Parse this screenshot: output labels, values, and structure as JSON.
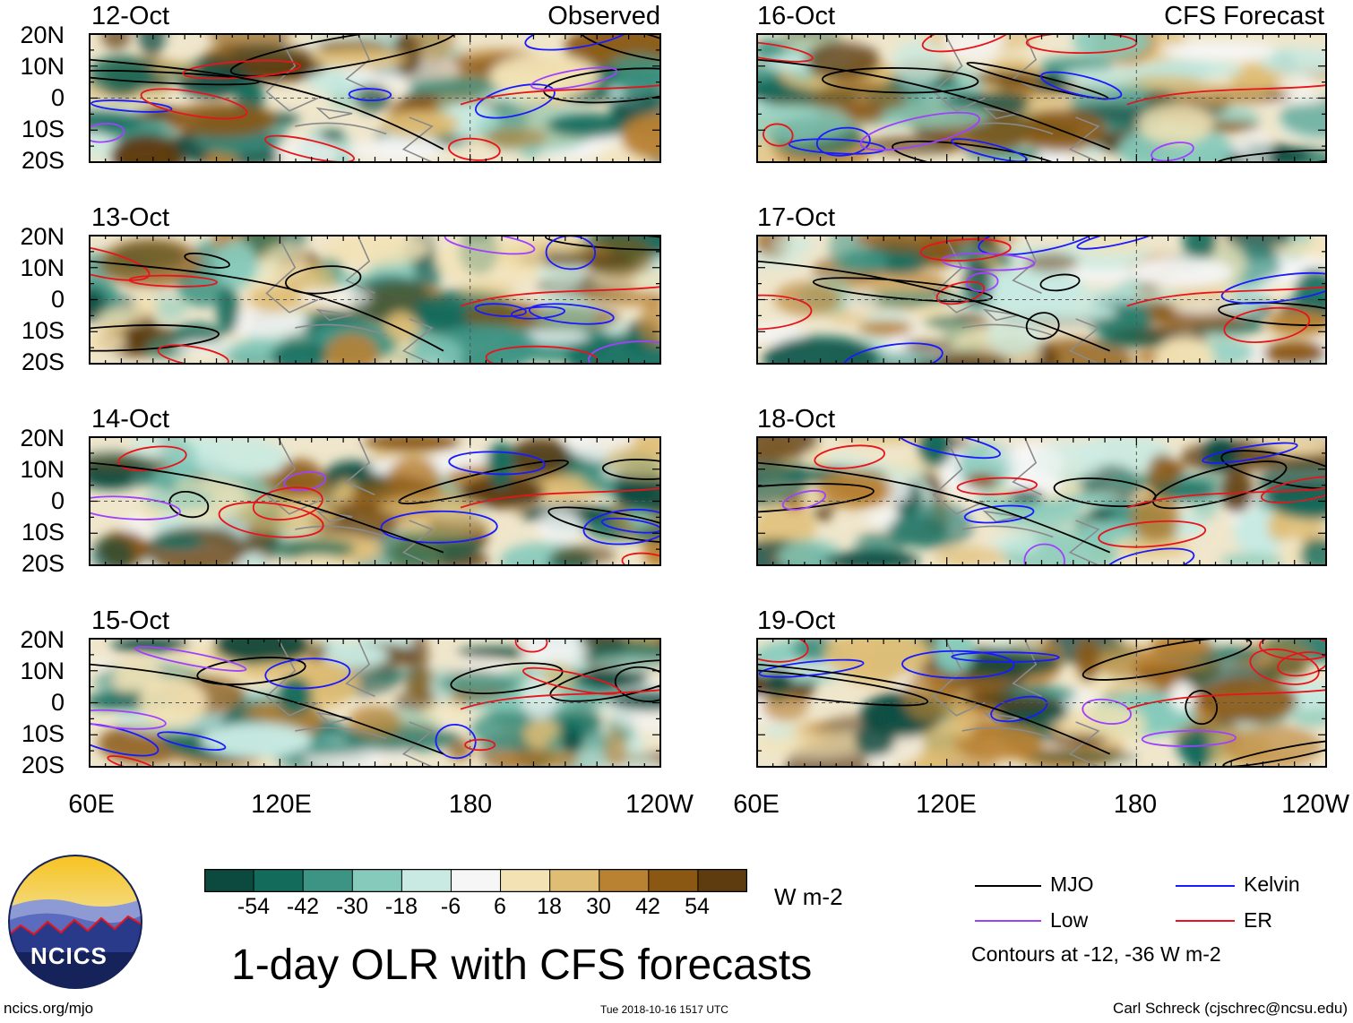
{
  "chart_data": {
    "type": "heatmap",
    "title": "1-day OLR with CFS forecasts",
    "x_ticks": [
      "60E",
      "120E",
      "180",
      "120W"
    ],
    "y_ticks": [
      "20N",
      "10N",
      "0",
      "10S",
      "20S"
    ],
    "xlim_deg_east": [
      60,
      240
    ],
    "ylim_deg": [
      -20,
      20
    ],
    "panels": [
      {
        "date": "12-Oct",
        "column": "left",
        "corner_label": "Observed"
      },
      {
        "date": "13-Oct",
        "column": "left"
      },
      {
        "date": "14-Oct",
        "column": "left"
      },
      {
        "date": "15-Oct",
        "column": "left"
      },
      {
        "date": "16-Oct",
        "column": "right",
        "corner_label": "CFS Forecast"
      },
      {
        "date": "17-Oct",
        "column": "right"
      },
      {
        "date": "18-Oct",
        "column": "right"
      },
      {
        "date": "19-Oct",
        "column": "right"
      }
    ],
    "colorbar": {
      "unit": "W m-2",
      "tick_labels": [
        "-54",
        "-42",
        "-30",
        "-18",
        "-6",
        "6",
        "18",
        "30",
        "42",
        "54"
      ],
      "colors": [
        "#0c4a3f",
        "#136b5c",
        "#3e9484",
        "#86cabb",
        "#c8eae2",
        "#f6f6f6",
        "#f3e2b4",
        "#dfbd74",
        "#b98132",
        "#8b5814",
        "#5e3c10"
      ]
    },
    "legend": [
      {
        "label": "MJO",
        "color": "#000000"
      },
      {
        "label": "Kelvin",
        "color": "#1a1aff"
      },
      {
        "label": "Low",
        "color": "#a040ff"
      },
      {
        "label": "ER",
        "color": "#e8141c"
      }
    ],
    "contour_note": "Contours at -12, -36 W m-2"
  },
  "footer": {
    "left": "ncics.org/mjo",
    "center": "Tue 2018-10-16 1517 UTC",
    "right": "Carl Schreck (cjschrec@ncsu.edu)",
    "logo_text": "NCICS"
  }
}
